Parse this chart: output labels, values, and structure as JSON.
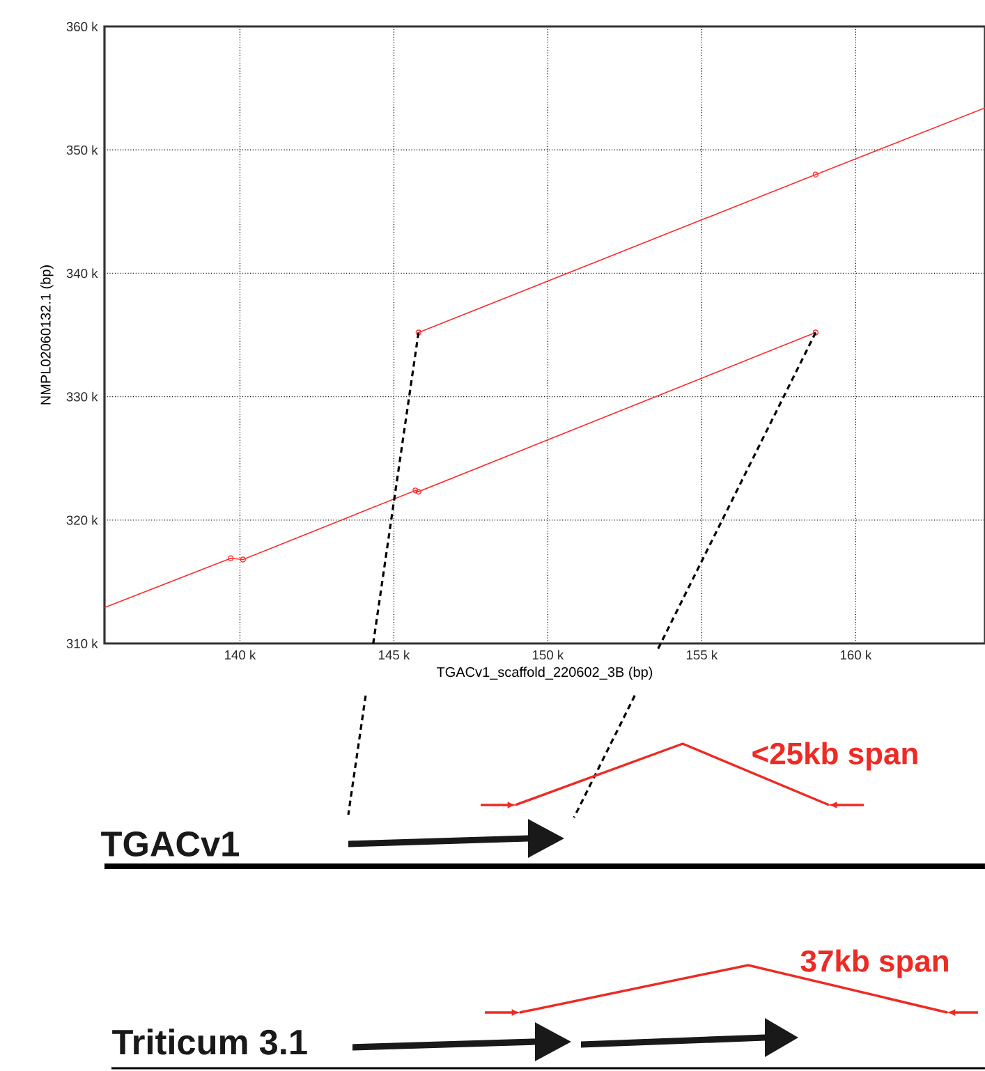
{
  "chart_data": {
    "type": "line",
    "xlabel": "TGACv1_scaffold_220602_3B (bp)",
    "ylabel": "NMPL02060132.1 (bp)",
    "xlim": [
      135.6,
      164.2
    ],
    "ylim": [
      310,
      360
    ],
    "xticks": [
      {
        "value": 140,
        "label": "140 k"
      },
      {
        "value": 145,
        "label": "145 k"
      },
      {
        "value": 150,
        "label": "150 k"
      },
      {
        "value": 155,
        "label": "155 k"
      },
      {
        "value": 160,
        "label": "160 k"
      }
    ],
    "yticks": [
      {
        "value": 310,
        "label": "310 k"
      },
      {
        "value": 320,
        "label": "320 k"
      },
      {
        "value": 330,
        "label": "330 k"
      },
      {
        "value": 340,
        "label": "340 k"
      },
      {
        "value": 350,
        "label": "350 k"
      },
      {
        "value": 360,
        "label": "360 k"
      }
    ],
    "grid": true,
    "series": [
      {
        "color": "#ff2a2a",
        "x": [
          135.6,
          139.7,
          140.1,
          145.7,
          145.8,
          158.7
        ],
        "values": [
          312.9,
          316.9,
          316.8,
          322.4,
          322.3,
          335.2
        ]
      },
      {
        "color": "#ff2a2a",
        "x": [
          145.8,
          158.7,
          164.2
        ],
        "values": [
          335.2,
          348.0,
          353.4
        ]
      },
      {
        "type": "scatter",
        "marker": "circle",
        "color": "#ff2a2a",
        "x": [
          139.7,
          140.1,
          145.7,
          145.8,
          158.7,
          145.8,
          158.7
        ],
        "values": [
          316.9,
          316.8,
          322.4,
          322.3,
          335.2,
          335.2,
          348.0
        ]
      }
    ],
    "annotations": [
      "TGACv1",
      "<25kb span",
      "Triticum 3.1",
      "37kb span"
    ]
  }
}
